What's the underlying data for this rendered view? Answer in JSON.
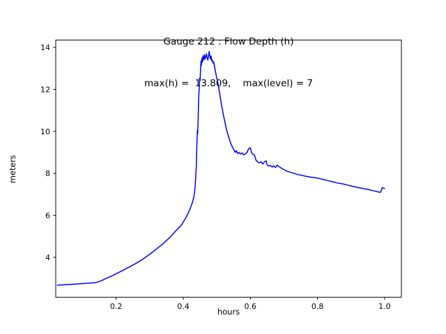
{
  "chart_data": {
    "type": "line",
    "title": "Gauge 212 : Flow Depth (h)",
    "subtitle": "max(h) =  13.809,    max(level) = 7",
    "xlabel": "hours",
    "ylabel": "meters",
    "xlim": [
      0.02,
      1.05
    ],
    "ylim": [
      2.1,
      14.35
    ],
    "xticks": [
      0.2,
      0.4,
      0.6,
      0.8,
      1.0
    ],
    "yticks": [
      4,
      6,
      8,
      10,
      12,
      14
    ],
    "grid": false,
    "legend": null,
    "line_color": "#0000ff",
    "axis_color": "#000000",
    "max_h": 13.809,
    "max_level": 7,
    "series": [
      {
        "name": "h",
        "x": [
          0.025,
          0.05,
          0.08,
          0.11,
          0.14,
          0.155,
          0.17,
          0.185,
          0.2,
          0.22,
          0.24,
          0.26,
          0.28,
          0.3,
          0.32,
          0.34,
          0.36,
          0.38,
          0.395,
          0.41,
          0.42,
          0.427,
          0.432,
          0.435,
          0.437,
          0.439,
          0.44,
          0.441,
          0.442,
          0.443,
          0.444,
          0.445,
          0.446,
          0.448,
          0.449,
          0.45,
          0.451,
          0.452,
          0.453,
          0.454,
          0.456,
          0.457,
          0.459,
          0.461,
          0.463,
          0.465,
          0.467,
          0.469,
          0.471,
          0.473,
          0.475,
          0.477,
          0.479,
          0.481,
          0.483,
          0.485,
          0.487,
          0.489,
          0.491,
          0.493,
          0.496,
          0.499,
          0.502,
          0.505,
          0.508,
          0.511,
          0.514,
          0.517,
          0.52,
          0.524,
          0.528,
          0.532,
          0.536,
          0.54,
          0.545,
          0.55,
          0.555,
          0.558,
          0.562,
          0.566,
          0.57,
          0.575,
          0.58,
          0.585,
          0.59,
          0.595,
          0.6,
          0.603,
          0.607,
          0.612,
          0.617,
          0.622,
          0.627,
          0.632,
          0.637,
          0.642,
          0.647,
          0.65,
          0.655,
          0.66,
          0.665,
          0.67,
          0.675,
          0.68,
          0.685,
          0.69,
          0.695,
          0.7,
          0.71,
          0.72,
          0.73,
          0.74,
          0.75,
          0.76,
          0.77,
          0.78,
          0.79,
          0.8,
          0.815,
          0.83,
          0.845,
          0.86,
          0.875,
          0.89,
          0.905,
          0.92,
          0.935,
          0.95,
          0.965,
          0.98,
          0.988,
          0.993,
          1.0
        ],
        "y": [
          2.68,
          2.7,
          2.73,
          2.76,
          2.8,
          2.88,
          3.0,
          3.1,
          3.22,
          3.38,
          3.55,
          3.72,
          3.92,
          4.15,
          4.4,
          4.65,
          4.95,
          5.3,
          5.55,
          5.95,
          6.3,
          6.6,
          6.9,
          7.3,
          7.8,
          8.4,
          9.0,
          9.6,
          10.05,
          9.9,
          10.4,
          11.0,
          11.6,
          12.2,
          12.55,
          12.4,
          12.75,
          13.1,
          13.35,
          13.15,
          13.5,
          13.3,
          13.6,
          13.4,
          13.65,
          13.45,
          13.55,
          13.7,
          13.5,
          13.4,
          13.55,
          13.809,
          13.6,
          13.45,
          13.6,
          13.35,
          13.4,
          13.25,
          13.3,
          13.1,
          12.85,
          12.6,
          12.4,
          12.15,
          11.85,
          11.55,
          11.25,
          11.0,
          10.75,
          10.45,
          10.15,
          9.9,
          9.7,
          9.5,
          9.3,
          9.15,
          9.0,
          9.08,
          8.95,
          9.0,
          8.92,
          8.98,
          8.88,
          8.92,
          9.0,
          9.18,
          9.22,
          9.0,
          8.92,
          8.88,
          8.62,
          8.55,
          8.5,
          8.56,
          8.45,
          8.55,
          8.6,
          8.4,
          8.35,
          8.38,
          8.3,
          8.36,
          8.28,
          8.4,
          8.32,
          8.28,
          8.22,
          8.18,
          8.1,
          8.05,
          8.0,
          7.95,
          7.92,
          7.88,
          7.85,
          7.82,
          7.8,
          7.78,
          7.72,
          7.66,
          7.6,
          7.54,
          7.5,
          7.44,
          7.38,
          7.33,
          7.28,
          7.24,
          7.18,
          7.12,
          7.1,
          7.32,
          7.28
        ]
      }
    ]
  }
}
